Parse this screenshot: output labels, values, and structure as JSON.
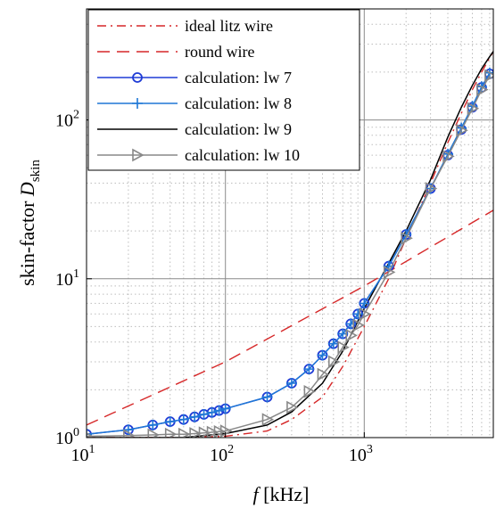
{
  "chart_data": {
    "type": "line",
    "x_scale": "log",
    "y_scale": "log",
    "xlim": [
      10,
      8500
    ],
    "ylim": [
      1,
      500
    ],
    "grid": true,
    "minor_grid": true,
    "legend_position": "top-left",
    "xlabel": {
      "italic": "f",
      "text": " [kHz]"
    },
    "ylabel": {
      "text": "skin-factor  ",
      "italic": "D",
      "subscript": "skin"
    },
    "x_ticks": [
      {
        "value": 10,
        "base": "10",
        "exp": "1"
      },
      {
        "value": 100,
        "base": "10",
        "exp": "2"
      },
      {
        "value": 1000,
        "base": "10",
        "exp": "3"
      }
    ],
    "y_ticks": [
      {
        "value": 1,
        "base": "10",
        "exp": "0"
      },
      {
        "value": 10,
        "base": "10",
        "exp": "1"
      },
      {
        "value": 100,
        "base": "10",
        "exp": "2"
      }
    ],
    "series": [
      {
        "name": "ideal litz wire",
        "color": "#d62728",
        "style": "dashdot",
        "marker": "none",
        "x": [
          10,
          20,
          50,
          100,
          200,
          300,
          500,
          700,
          1000,
          1500,
          2000,
          3000,
          4000,
          5000,
          6000,
          7000,
          8000,
          8500
        ],
        "y": [
          1.0,
          1.0,
          1.0,
          1.02,
          1.1,
          1.3,
          1.8,
          2.8,
          5.0,
          10.0,
          18.0,
          40.0,
          72.0,
          110.0,
          155.0,
          200.0,
          245.0,
          270.0
        ]
      },
      {
        "name": "round wire",
        "color": "#d62728",
        "style": "dashed",
        "marker": "none",
        "x": [
          10,
          100,
          1000,
          8500
        ],
        "y": [
          1.2,
          3.0,
          9.0,
          27.0
        ]
      },
      {
        "name": "calculation: lw 7",
        "color": "#1f3cd6",
        "style": "solid",
        "marker": "circle",
        "x": [
          10,
          20,
          30,
          40,
          50,
          60,
          70,
          80,
          90,
          100,
          200,
          300,
          400,
          500,
          600,
          700,
          800,
          900,
          1000,
          1500,
          2000,
          3000,
          4000,
          5000,
          6000,
          7000,
          8000
        ],
        "y": [
          1.05,
          1.12,
          1.2,
          1.26,
          1.3,
          1.35,
          1.4,
          1.44,
          1.48,
          1.52,
          1.8,
          2.2,
          2.7,
          3.3,
          3.9,
          4.5,
          5.2,
          6.0,
          7.0,
          12.0,
          19.0,
          37.0,
          60.0,
          87.0,
          120.0,
          160.0,
          195.0
        ]
      },
      {
        "name": "calculation: lw 8",
        "color": "#1f77d6",
        "style": "solid",
        "marker": "plus",
        "x": [
          10,
          20,
          30,
          40,
          50,
          60,
          70,
          80,
          90,
          100,
          200,
          300,
          400,
          500,
          600,
          700,
          800,
          900,
          1000,
          1500,
          2000,
          3000,
          4000,
          5000,
          6000,
          7000,
          8000
        ],
        "y": [
          1.05,
          1.12,
          1.2,
          1.26,
          1.3,
          1.35,
          1.4,
          1.44,
          1.48,
          1.52,
          1.8,
          2.2,
          2.7,
          3.3,
          3.9,
          4.5,
          5.2,
          6.0,
          7.0,
          12.0,
          19.0,
          37.0,
          61.0,
          89.0,
          122.0,
          162.0,
          198.0
        ]
      },
      {
        "name": "calculation: lw 9",
        "color": "#000000",
        "style": "solid",
        "marker": "none",
        "x": [
          10,
          20,
          50,
          100,
          200,
          300,
          500,
          700,
          1000,
          1500,
          2000,
          3000,
          4000,
          5000,
          6000,
          7000,
          8000,
          8500
        ],
        "y": [
          1.0,
          1.0,
          1.0,
          1.06,
          1.2,
          1.45,
          2.2,
          3.5,
          6.5,
          12.5,
          20.0,
          42.0,
          78.0,
          120.0,
          165.0,
          210.0,
          250.0,
          270.0
        ]
      },
      {
        "name": "calculation: lw 10",
        "color": "#888888",
        "style": "solid",
        "marker": "triangle-right",
        "x": [
          10,
          20,
          30,
          40,
          50,
          60,
          70,
          80,
          90,
          100,
          200,
          300,
          400,
          500,
          600,
          700,
          800,
          900,
          1000,
          1500,
          2000,
          3000,
          4000,
          5000,
          6000,
          7000,
          8000
        ],
        "y": [
          1.02,
          1.03,
          1.04,
          1.05,
          1.05,
          1.06,
          1.07,
          1.08,
          1.09,
          1.1,
          1.3,
          1.55,
          1.95,
          2.5,
          3.0,
          3.7,
          4.4,
          5.1,
          6.0,
          11.0,
          18.0,
          37.0,
          59.0,
          86.0,
          118.0,
          155.0,
          190.0
        ]
      }
    ]
  }
}
